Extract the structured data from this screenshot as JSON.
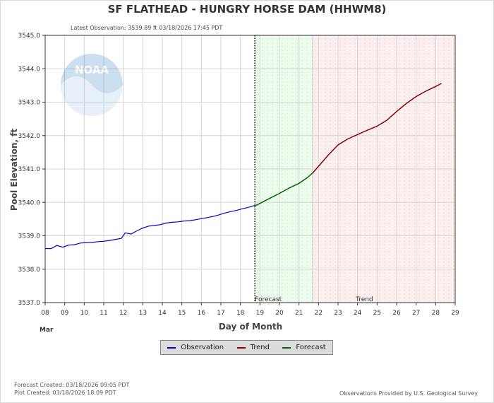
{
  "header": {
    "title": "SF FLATHEAD - HUNGRY HORSE DAM  (HHWM8)",
    "latest": "Latest Observation: 3539.89 ft 03/18/2026 17:45 PDT"
  },
  "logo": {
    "text": "NOAA"
  },
  "colors": {
    "observation": "#0000cc",
    "forecast": "#006400",
    "trend": "#8b0000",
    "forecast_zone": "#ecfbec",
    "trend_zone": "#fbefef",
    "grid": "#d4d4d4"
  },
  "footer": {
    "forecast_created": "Forecast Created: 03/18/2026 09:05 PDT",
    "plot_created": "Plot Created: 03/18/2026 18:09 PDT",
    "provided": "Observations Provided by U.S. Geological Survey"
  },
  "chart_data": {
    "type": "line",
    "title": "SF FLATHEAD - HUNGRY HORSE DAM  (HHWM8)",
    "xlabel": "Day of Month",
    "ylabel": "Pool Elevation, ft",
    "month_label": "Mar",
    "xlim": [
      8,
      29
    ],
    "ylim": [
      3537.0,
      3545.0
    ],
    "x_ticks": [
      "08",
      "09",
      "10",
      "11",
      "12",
      "13",
      "14",
      "15",
      "16",
      "17",
      "18",
      "19",
      "20",
      "21",
      "22",
      "23",
      "24",
      "25",
      "26",
      "27",
      "28",
      "29"
    ],
    "y_ticks": [
      "3537.0",
      "3538.0",
      "3539.0",
      "3540.0",
      "3541.0",
      "3542.0",
      "3543.0",
      "3544.0",
      "3545.0"
    ],
    "grid": true,
    "legend_position": "bottom-center",
    "current_time": 18.74,
    "zones": [
      {
        "label": "Forecast",
        "from": 18.74,
        "to": 21.7
      },
      {
        "label": "Trend",
        "from": 21.7,
        "to": 29
      }
    ],
    "series": [
      {
        "name": "Observation",
        "x": [
          8.0,
          8.3,
          8.6,
          8.9,
          9.2,
          9.5,
          9.8,
          10.1,
          10.4,
          10.7,
          11.0,
          11.3,
          11.6,
          11.9,
          12.1,
          12.4,
          12.7,
          13.0,
          13.3,
          13.6,
          13.9,
          14.2,
          14.5,
          14.8,
          15.1,
          15.4,
          15.7,
          16.0,
          16.3,
          16.6,
          16.9,
          17.2,
          17.5,
          17.8,
          18.1,
          18.4,
          18.74
        ],
        "y": [
          3538.62,
          3538.6,
          3538.68,
          3538.62,
          3538.68,
          3538.7,
          3538.76,
          3538.79,
          3538.81,
          3538.85,
          3538.87,
          3538.9,
          3538.93,
          3538.95,
          3539.1,
          3539.05,
          3539.13,
          3539.2,
          3539.25,
          3539.27,
          3539.3,
          3539.36,
          3539.4,
          3539.43,
          3539.47,
          3539.49,
          3539.52,
          3539.55,
          3539.57,
          3539.59,
          3539.62,
          3539.66,
          3539.69,
          3539.72,
          3539.77,
          3539.82,
          3539.89
        ]
      },
      {
        "name": "Forecast",
        "x": [
          18.74,
          19.0,
          19.5,
          20.0,
          20.5,
          21.0,
          21.4,
          21.7
        ],
        "y": [
          3539.89,
          3539.97,
          3540.12,
          3540.27,
          3540.43,
          3540.57,
          3540.73,
          3540.88
        ]
      },
      {
        "name": "Trend",
        "x": [
          21.7,
          22.0,
          22.5,
          23.0,
          23.5,
          24.0,
          24.5,
          25.0,
          25.5,
          26.0,
          26.5,
          27.0,
          27.5,
          28.0,
          28.3
        ],
        "y": [
          3540.88,
          3541.08,
          3541.42,
          3541.72,
          3541.9,
          3542.03,
          3542.16,
          3542.28,
          3542.46,
          3542.72,
          3542.96,
          3543.17,
          3543.33,
          3543.47,
          3543.56
        ]
      }
    ]
  }
}
